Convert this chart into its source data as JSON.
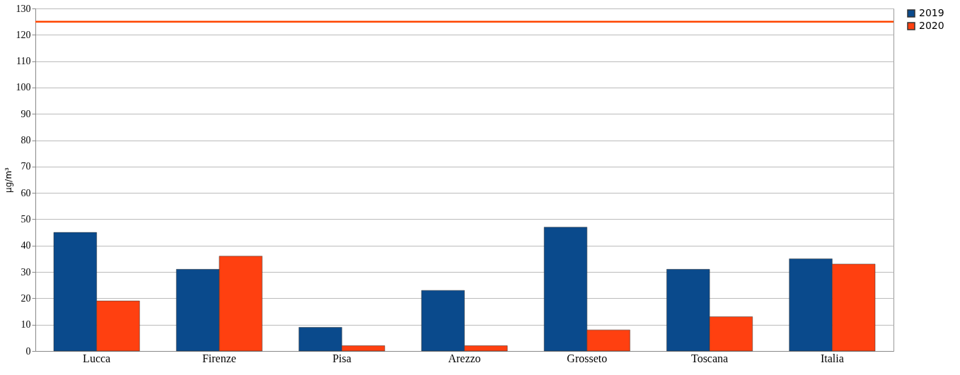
{
  "chart_data": {
    "type": "bar",
    "ylabel": "µg/m³",
    "categories": [
      "Lucca",
      "Firenze",
      "Pisa",
      "Arezzo",
      "Grosseto",
      "Toscana",
      "Italia"
    ],
    "series": [
      {
        "name": "2019",
        "color": "#0a4a8c",
        "values": [
          45,
          31,
          9,
          23,
          47,
          31,
          35
        ]
      },
      {
        "name": "2020",
        "color": "#ff4010",
        "values": [
          19,
          36,
          2,
          2,
          8,
          13,
          33
        ]
      }
    ],
    "ylim": [
      0,
      130
    ],
    "yticks": [
      0,
      10,
      20,
      30,
      40,
      50,
      60,
      70,
      80,
      90,
      100,
      110,
      120,
      130
    ],
    "grid": "y",
    "legend": "right",
    "ref_lines": [
      {
        "axis": "y",
        "value": 125,
        "color": "#ff4500"
      }
    ]
  }
}
